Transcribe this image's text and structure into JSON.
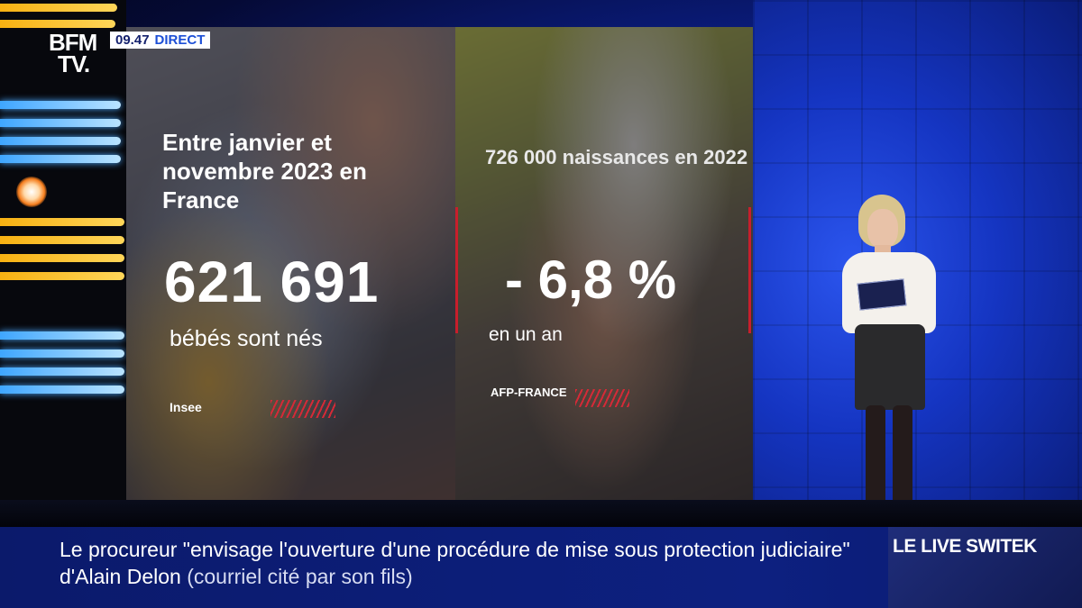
{
  "broadcast": {
    "channel_logo_line1": "BFM",
    "channel_logo_line2": "TV.",
    "time": "09.47",
    "live_label": "DIRECT"
  },
  "infographic": {
    "left": {
      "heading": "Entre janvier et novembre 2023 en France",
      "big_number": "621 691",
      "caption": "bébés sont nés",
      "source": "Insee"
    },
    "right": {
      "heading": "726 000 naissances en 2022",
      "big_number": "- 6,8 %",
      "caption": "en un an",
      "source": "AFP-FRANCE"
    }
  },
  "lower_third": {
    "headline_main": "Le procureur \"envisage l'ouverture d'une procédure de mise sous protection judiciaire\" d'Alain Delon",
    "headline_note": "(courriel cité par son fils)",
    "program": "LE LIVE SWITEK"
  },
  "colors": {
    "accent_red": "#c81e2c",
    "lower_third_blue": "#0b1a6b",
    "studio_blue": "#1535c2",
    "live_badge_text": "#1d4fd6"
  }
}
